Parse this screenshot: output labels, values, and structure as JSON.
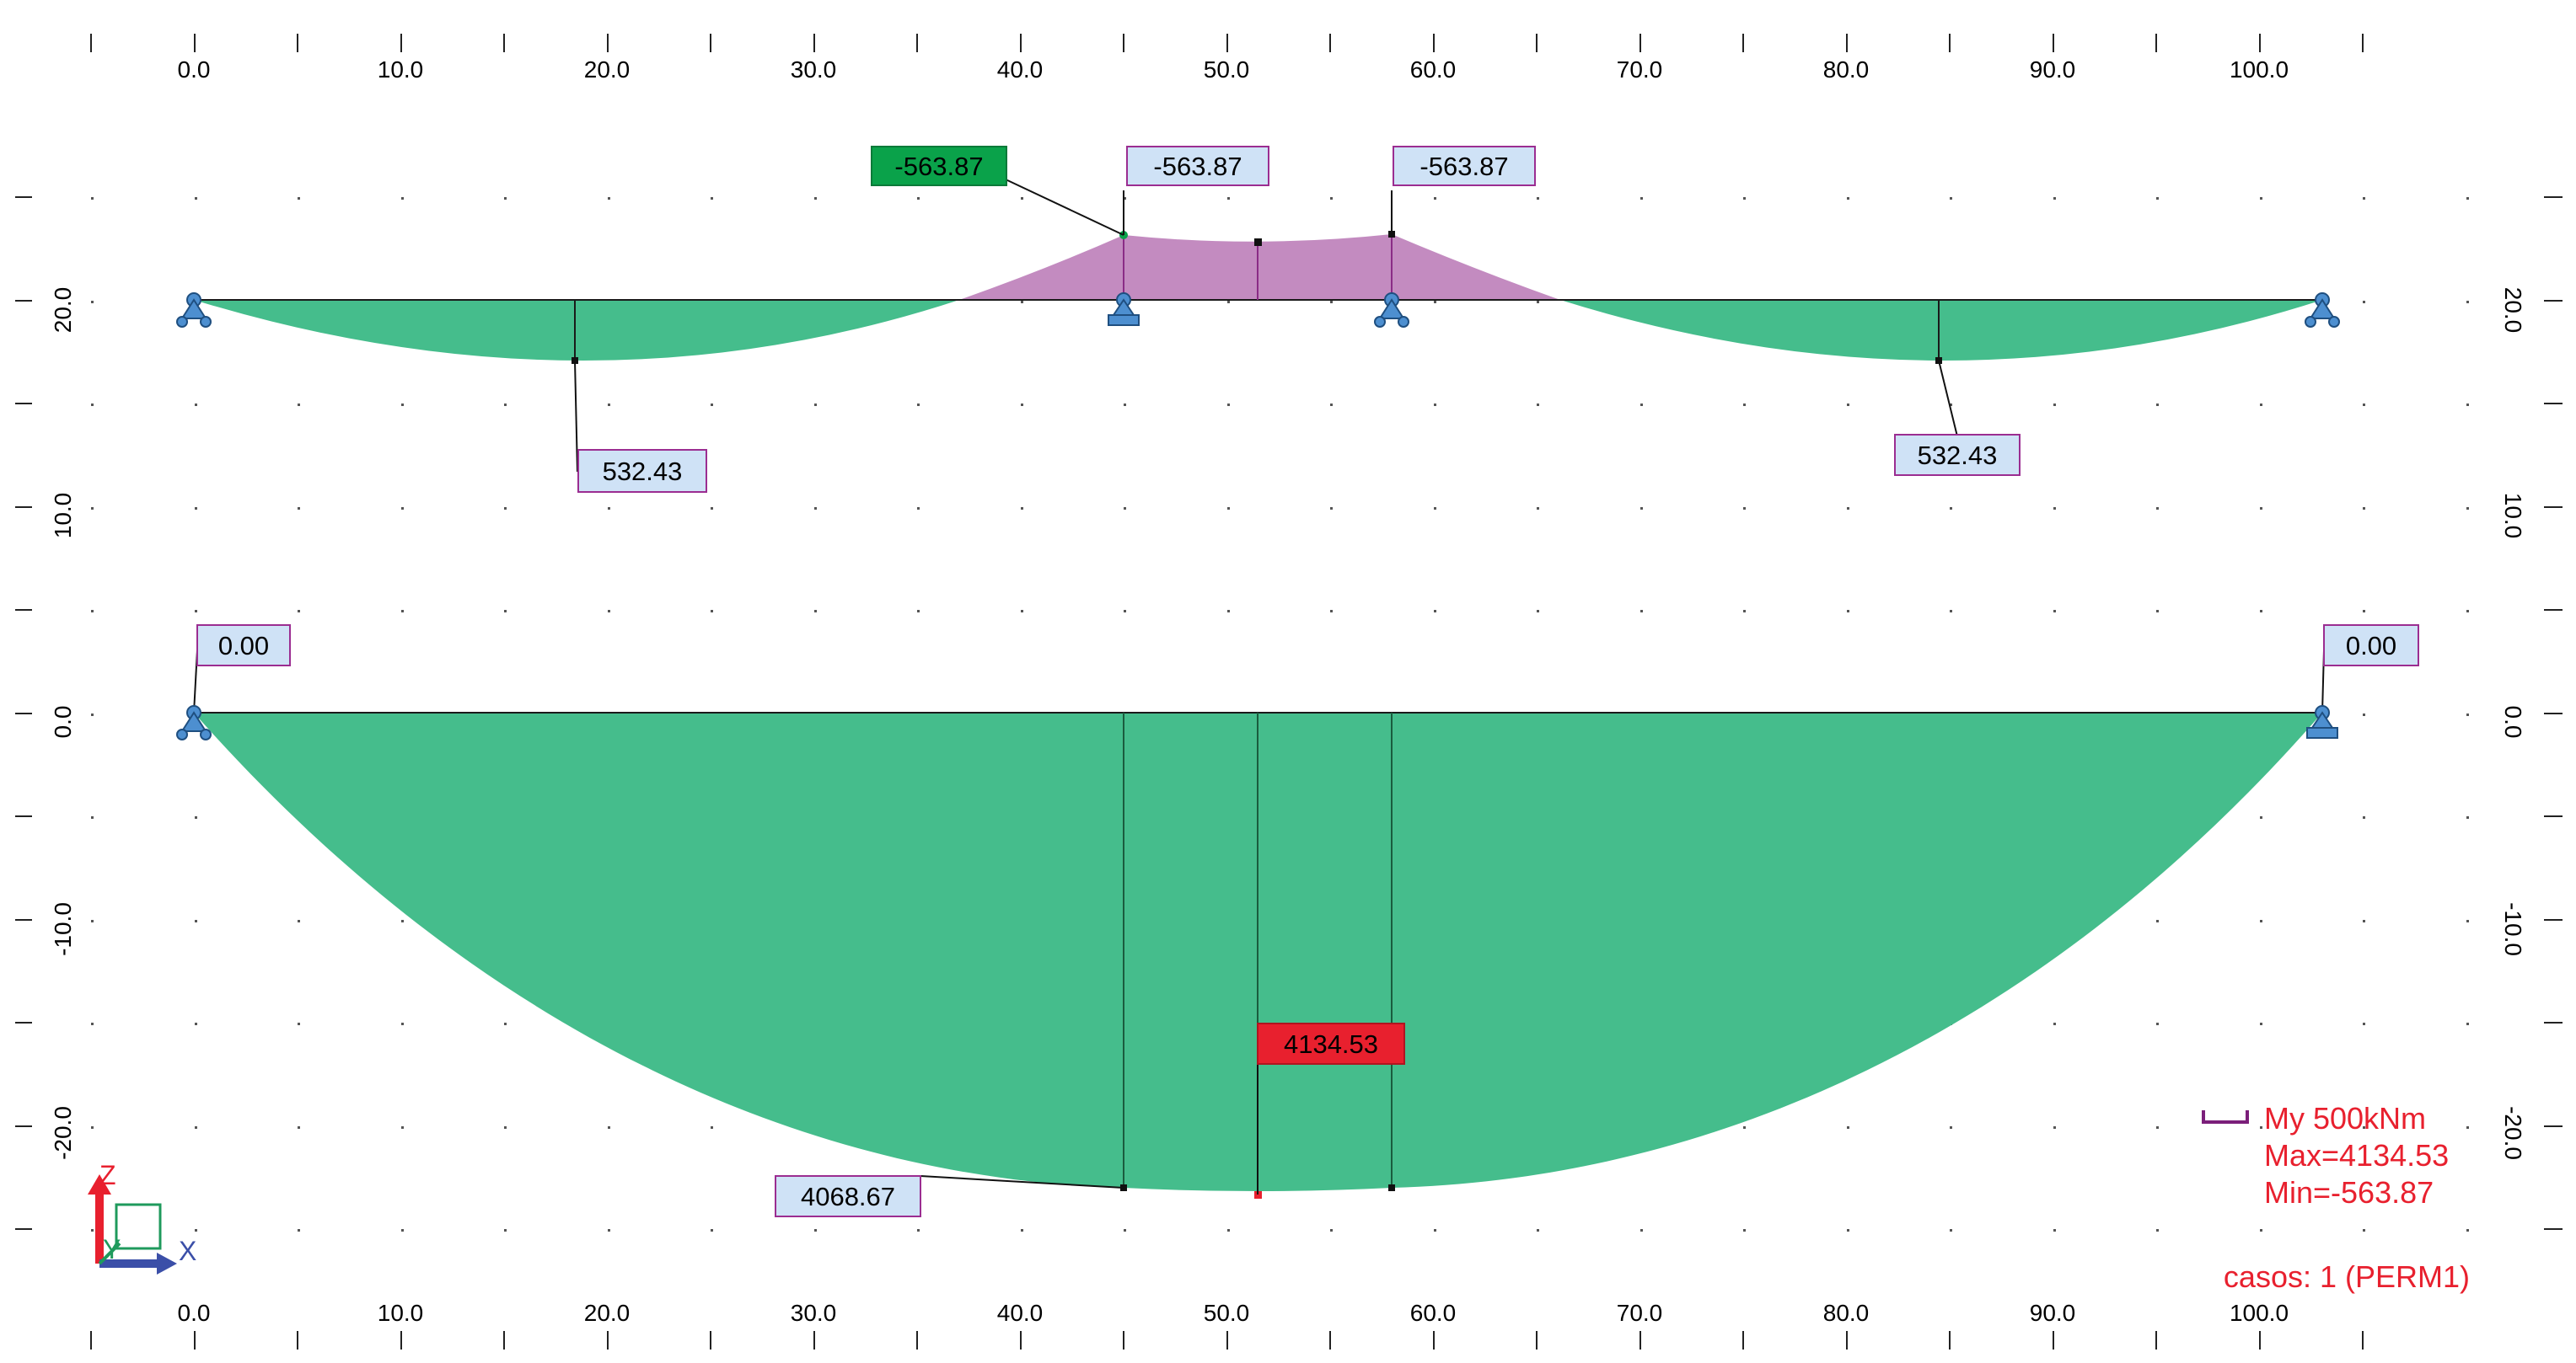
{
  "diagram": {
    "x_ticks": [
      "0.0",
      "10.0",
      "20.0",
      "30.0",
      "40.0",
      "50.0",
      "60.0",
      "70.0",
      "80.0",
      "90.0",
      "100.0"
    ],
    "y_ticks": [
      "20.0",
      "10.0",
      "0.0",
      "-10.0",
      "-20.0"
    ],
    "upper_beam": {
      "labels": [
        "-563.87",
        "-563.87",
        "-563.87",
        "532.43",
        "532.43"
      ],
      "highlight_min": "-563.87"
    },
    "lower_beam": {
      "labels": [
        "0.00",
        "0.00",
        "4068.67"
      ],
      "highlight_max": "4134.53"
    },
    "legend": {
      "quantity": "My  500kNm",
      "max": "Max=4134.53",
      "min": "Min=-563.87",
      "cases": "casos: 1 (PERM1)"
    },
    "axes": {
      "z": "Z",
      "y": "Y",
      "x": "X"
    }
  },
  "colors": {
    "positive_fill": "#45bd8c",
    "negative_fill": "#c38bc0",
    "label_bg": "#cfe2f6",
    "label_border": "#9b2d91",
    "max_bg": "#e8202e",
    "min_bg": "#0aa24a",
    "support": "#4d8fd0"
  }
}
